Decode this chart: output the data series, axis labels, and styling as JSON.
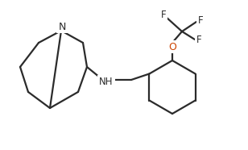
{
  "background": "#ffffff",
  "line_color": "#2b2b2b",
  "atom_N_color": "#2b2b2b",
  "atom_O_color": "#cc4400",
  "atom_F_color": "#2b2b2b",
  "line_width": 1.6,
  "font_size": 8.5,
  "N_label": "N",
  "O_label": "O",
  "F_label": "F",
  "NH_label": "NH"
}
